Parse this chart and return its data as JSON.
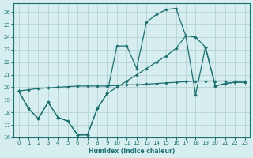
{
  "xlabel": "Humidex (Indice chaleur)",
  "xlim": [
    -0.5,
    23.5
  ],
  "ylim": [
    16,
    26.7
  ],
  "yticks": [
    16,
    17,
    18,
    19,
    20,
    21,
    22,
    23,
    24,
    25,
    26
  ],
  "xticks": [
    0,
    1,
    2,
    3,
    4,
    5,
    6,
    7,
    8,
    9,
    10,
    11,
    12,
    13,
    14,
    15,
    16,
    17,
    18,
    19,
    20,
    21,
    22,
    23
  ],
  "bg_color": "#d6eef0",
  "grid_color": "#aecccc",
  "line_color": "#1e7070",
  "curve1_x": [
    0,
    1,
    2,
    3,
    4,
    5,
    6,
    7,
    8,
    9,
    10,
    11,
    12,
    13,
    14,
    15,
    16,
    17,
    18,
    19,
    20,
    21,
    22,
    23
  ],
  "curve1_y": [
    19.7,
    18.3,
    17.5,
    18.8,
    17.6,
    17.3,
    16.2,
    16.2,
    18.3,
    19.5,
    23.3,
    23.3,
    21.5,
    25.2,
    25.8,
    26.2,
    26.3,
    24.1,
    19.4,
    23.2,
    20.1,
    20.3,
    20.4,
    20.4
  ],
  "curve2_x": [
    0,
    1,
    2,
    3,
    4,
    5,
    6,
    7,
    8,
    9,
    10,
    11,
    12,
    13,
    14,
    15,
    16,
    17,
    18,
    19,
    20,
    21,
    22,
    23
  ],
  "curve2_y": [
    19.7,
    19.8,
    19.9,
    19.95,
    20.0,
    20.05,
    20.1,
    20.1,
    20.1,
    20.1,
    20.15,
    20.2,
    20.2,
    20.25,
    20.3,
    20.35,
    20.4,
    20.45,
    20.5,
    20.5,
    20.5,
    20.5,
    20.5,
    20.5
  ],
  "curve3_x": [
    0,
    1,
    2,
    3,
    4,
    5,
    6,
    7,
    8,
    9,
    10,
    11,
    12,
    13,
    14,
    15,
    16,
    17,
    18,
    19,
    20,
    21,
    22,
    23
  ],
  "curve3_y": [
    19.7,
    18.3,
    17.5,
    18.8,
    17.6,
    17.3,
    16.2,
    16.2,
    18.3,
    19.5,
    20.0,
    20.5,
    21.0,
    21.5,
    22.0,
    22.5,
    23.1,
    24.1,
    24.0,
    23.2,
    20.1,
    20.3,
    20.4,
    20.4
  ]
}
